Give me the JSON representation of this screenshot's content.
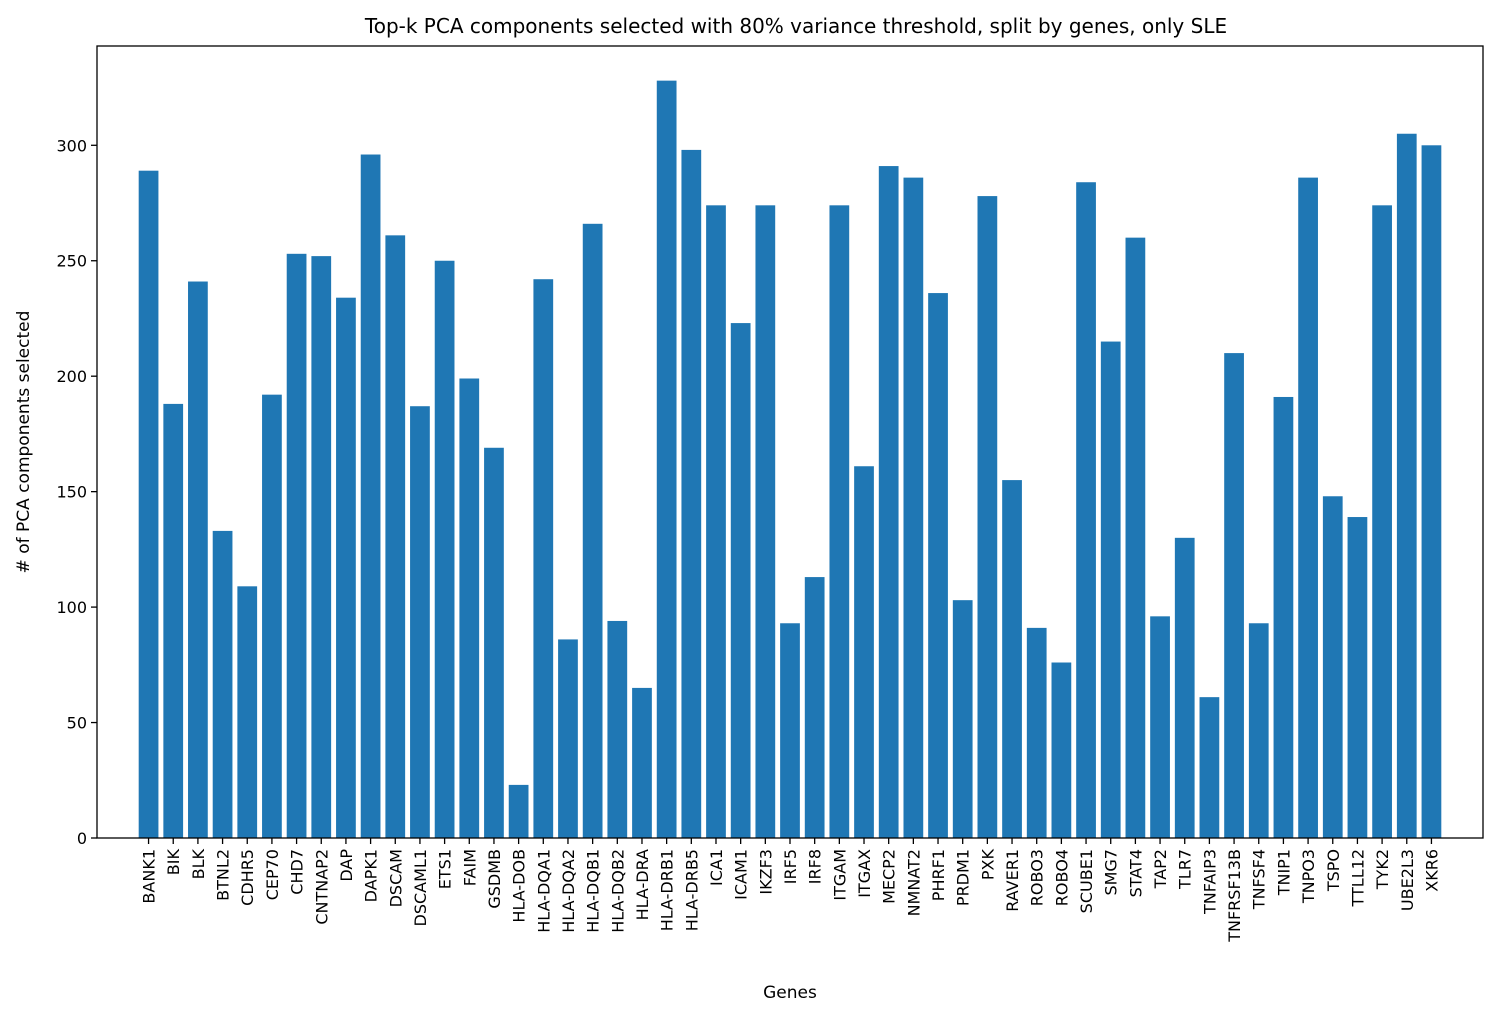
{
  "chart_data": {
    "type": "bar",
    "title": "Top-k PCA components selected with 80% variance threshold, split by genes, only SLE",
    "xlabel": "Genes",
    "ylabel": "# of PCA components selected",
    "ylim": [
      0,
      343
    ],
    "yticks": [
      0,
      50,
      100,
      150,
      200,
      250,
      300
    ],
    "bar_color": "#1f77b4",
    "grid": false,
    "legend": "none",
    "categories": [
      "BANK1",
      "BIK",
      "BLK",
      "BTNL2",
      "CDHR5",
      "CEP70",
      "CHD7",
      "CNTNAP2",
      "DAP",
      "DAPK1",
      "DSCAM",
      "DSCAML1",
      "ETS1",
      "FAIM",
      "GSDMB",
      "HLA-DOB",
      "HLA-DQA1",
      "HLA-DQA2",
      "HLA-DQB1",
      "HLA-DQB2",
      "HLA-DRA",
      "HLA-DRB1",
      "HLA-DRB5",
      "ICA1",
      "ICAM1",
      "IKZF3",
      "IRF5",
      "IRF8",
      "ITGAM",
      "ITGAX",
      "MECP2",
      "NMNAT2",
      "PHRF1",
      "PRDM1",
      "PXK",
      "RAVER1",
      "ROBO3",
      "ROBO4",
      "SCUBE1",
      "SMG7",
      "STAT4",
      "TAP2",
      "TLR7",
      "TNFAIP3",
      "TNFRSF13B",
      "TNFSF4",
      "TNIP1",
      "TNPO3",
      "TSPO",
      "TTLL12",
      "TYK2",
      "UBE2L3",
      "XKR6"
    ],
    "values": [
      289,
      188,
      241,
      133,
      109,
      192,
      253,
      252,
      234,
      296,
      261,
      187,
      250,
      199,
      169,
      23,
      242,
      86,
      266,
      94,
      65,
      328,
      298,
      274,
      223,
      274,
      93,
      113,
      274,
      161,
      291,
      286,
      236,
      103,
      278,
      155,
      91,
      76,
      284,
      215,
      260,
      96,
      130,
      61,
      210,
      93,
      191,
      286,
      148,
      139,
      274,
      305,
      300
    ]
  }
}
